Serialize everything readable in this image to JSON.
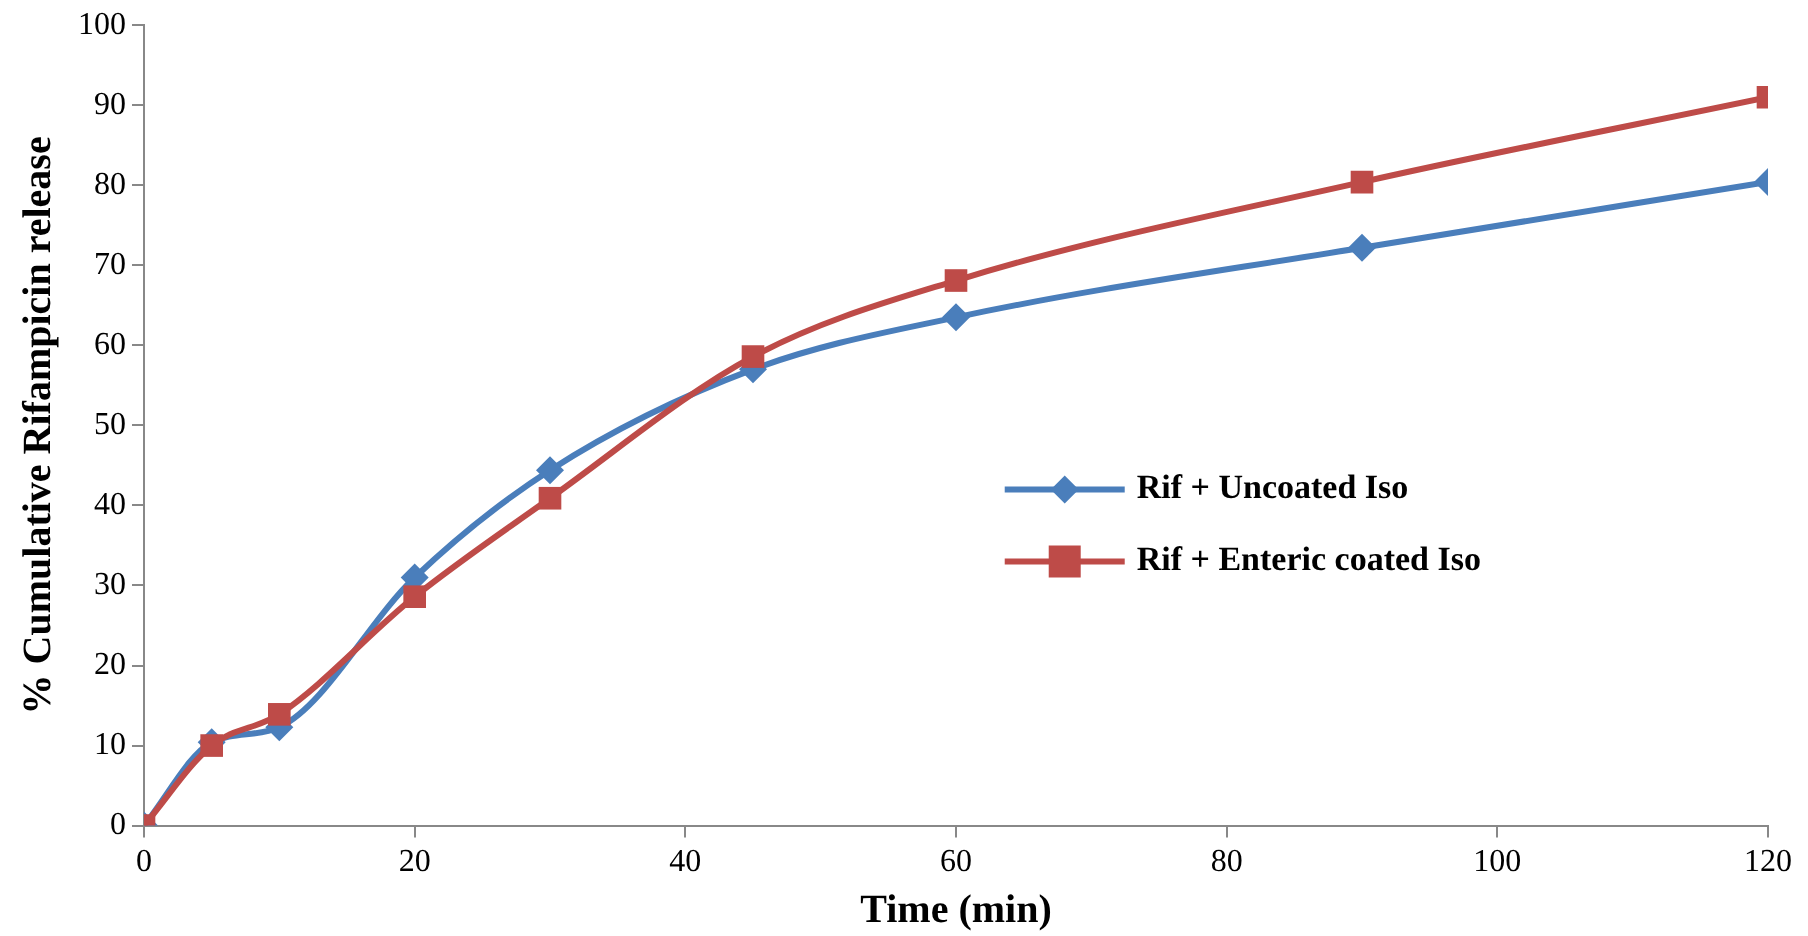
{
  "chart_data": {
    "type": "line",
    "xlabel": "Time (min)",
    "ylabel": "% Cumulative Rifampicin release",
    "x": [
      0,
      5,
      10,
      20,
      30,
      45,
      60,
      90,
      120
    ],
    "xlim": [
      0,
      120
    ],
    "xticks": [
      0,
      20,
      40,
      60,
      80,
      100,
      120
    ],
    "ylim": [
      0,
      100
    ],
    "yticks": [
      0,
      10,
      20,
      30,
      40,
      50,
      60,
      70,
      80,
      90,
      100
    ],
    "grid": false,
    "legend": "right",
    "series": [
      {
        "name": "Rif + Uncoated Iso",
        "color": "#4a7ebb",
        "marker": "diamond",
        "values": [
          0,
          10.4,
          12.3,
          31,
          44.4,
          57,
          63.5,
          72.2,
          80.4
        ]
      },
      {
        "name": "Rif + Enteric coated Iso",
        "color": "#be4b48",
        "marker": "square",
        "values": [
          0,
          10,
          13.9,
          28.6,
          40.9,
          58.6,
          68.1,
          80.4,
          91
        ]
      }
    ]
  }
}
